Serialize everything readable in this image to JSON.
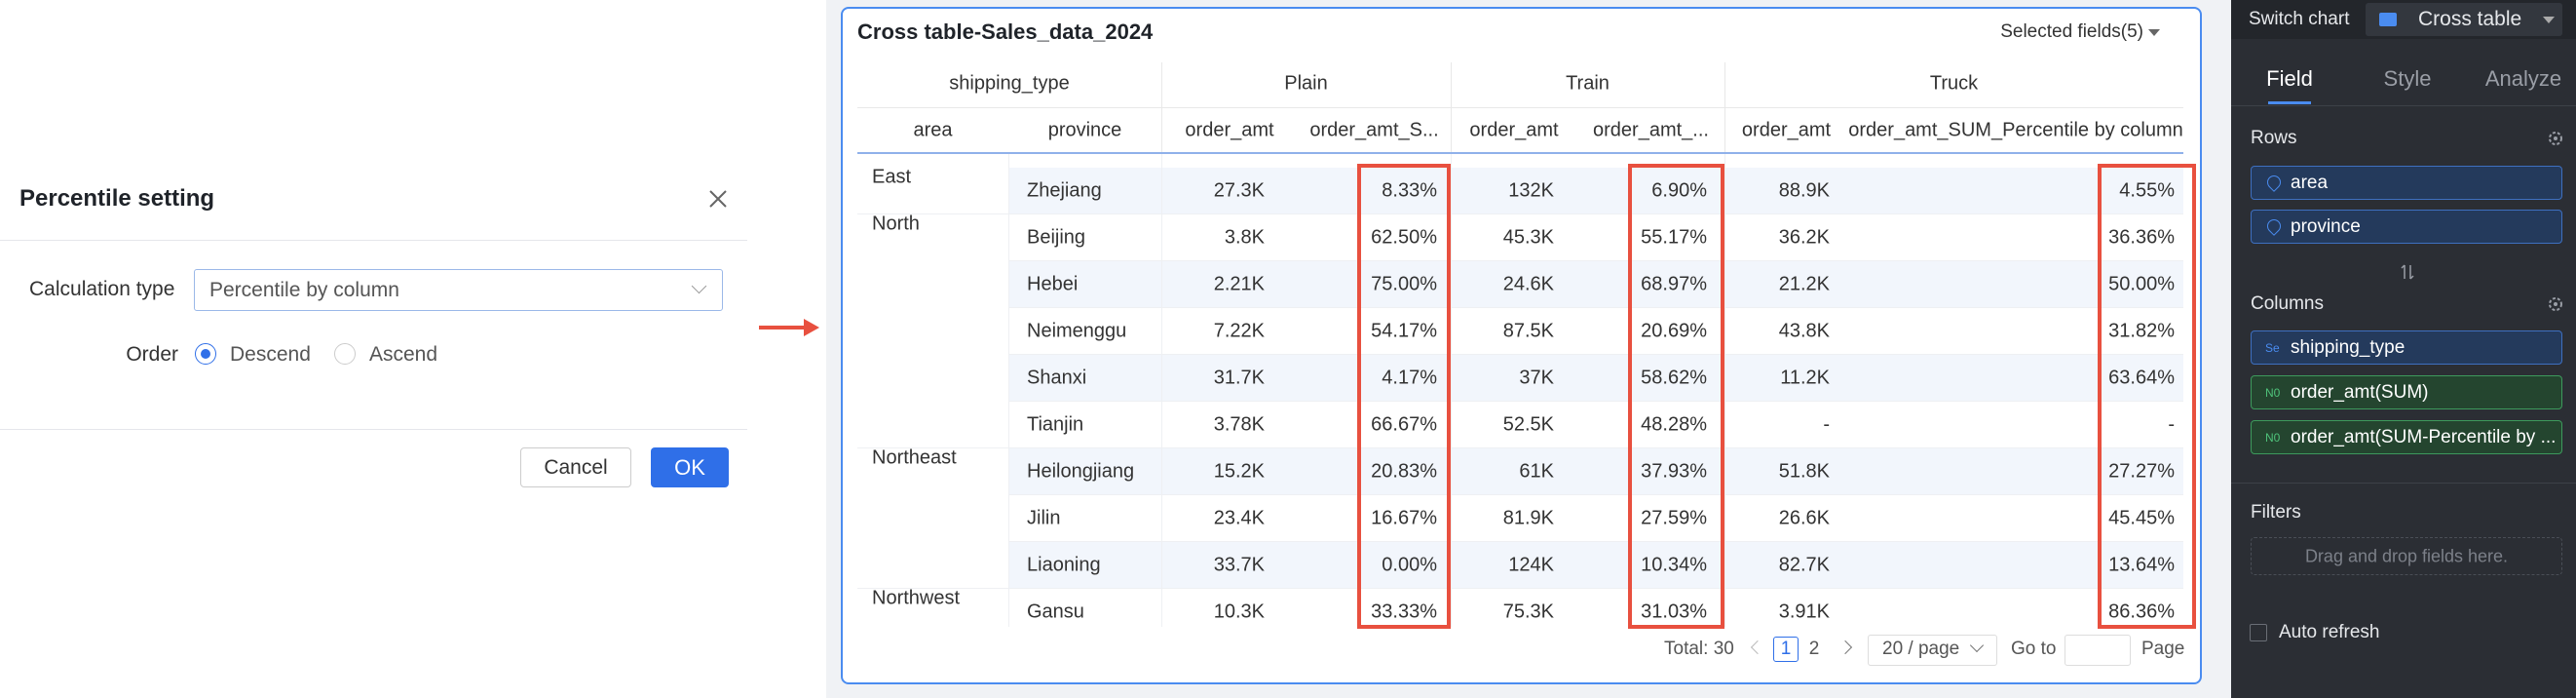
{
  "dialog": {
    "title": "Percentile setting",
    "calc_label": "Calculation type",
    "calc_value": "Percentile by column",
    "order_label": "Order",
    "options": [
      "Descend",
      "Ascend"
    ],
    "cancel": "Cancel",
    "ok": "OK"
  },
  "table": {
    "title": "Cross table-Sales_data_2024",
    "selected_fields": "Selected fields(5)",
    "header_top": [
      "shipping_type",
      "Plain",
      "Train",
      "Truck"
    ],
    "header": [
      "area",
      "province",
      "order_amt",
      "order_amt_S...",
      "order_amt",
      "order_amt_...",
      "order_amt",
      "order_amt_SUM_Percentile by column"
    ],
    "groups": [
      {
        "area": "East",
        "rows": [
          [
            "Zhejiang",
            "27.3K",
            "8.33%",
            "132K",
            "6.90%",
            "88.9K",
            "4.55%"
          ]
        ]
      },
      {
        "area": "North",
        "rows": [
          [
            "Beijing",
            "3.8K",
            "62.50%",
            "45.3K",
            "55.17%",
            "36.2K",
            "36.36%"
          ],
          [
            "Hebei",
            "2.21K",
            "75.00%",
            "24.6K",
            "68.97%",
            "21.2K",
            "50.00%"
          ],
          [
            "Neimenggu",
            "7.22K",
            "54.17%",
            "87.5K",
            "20.69%",
            "43.8K",
            "31.82%"
          ],
          [
            "Shanxi",
            "31.7K",
            "4.17%",
            "37K",
            "58.62%",
            "11.2K",
            "63.64%"
          ],
          [
            "Tianjin",
            "3.78K",
            "66.67%",
            "52.5K",
            "48.28%",
            "-",
            "-"
          ]
        ]
      },
      {
        "area": "Northeast",
        "rows": [
          [
            "Heilongjiang",
            "15.2K",
            "20.83%",
            "61K",
            "37.93%",
            "51.8K",
            "27.27%"
          ],
          [
            "Jilin",
            "23.4K",
            "16.67%",
            "81.9K",
            "27.59%",
            "26.6K",
            "45.45%"
          ],
          [
            "Liaoning",
            "33.7K",
            "0.00%",
            "124K",
            "10.34%",
            "82.7K",
            "13.64%"
          ]
        ]
      },
      {
        "area": "Northwest",
        "rows": [
          [
            "Gansu",
            "10.3K",
            "33.33%",
            "75.3K",
            "31.03%",
            "3.91K",
            "86.36%"
          ]
        ]
      }
    ]
  },
  "pagination": {
    "total": "Total: 30",
    "pages": [
      "1",
      "2"
    ],
    "page_size": "20 / page",
    "goto": "Go to",
    "page": "Page"
  },
  "sidebar": {
    "switch_label": "Switch chart",
    "chart": "Cross table",
    "tabs": [
      "Field",
      "Style",
      "Analyze"
    ],
    "rows_title": "Rows",
    "rows": [
      "area",
      "province"
    ],
    "columns_title": "Columns",
    "columns": [
      {
        "icon": "Se",
        "label": "shipping_type"
      },
      {
        "icon": "N0",
        "label": "order_amt(SUM)"
      },
      {
        "icon": "N0",
        "label": "order_amt(SUM-Percentile by ..."
      }
    ],
    "filters_title": "Filters",
    "filters_placeholder": "Drag and drop fields here.",
    "auto_refresh": "Auto refresh"
  }
}
